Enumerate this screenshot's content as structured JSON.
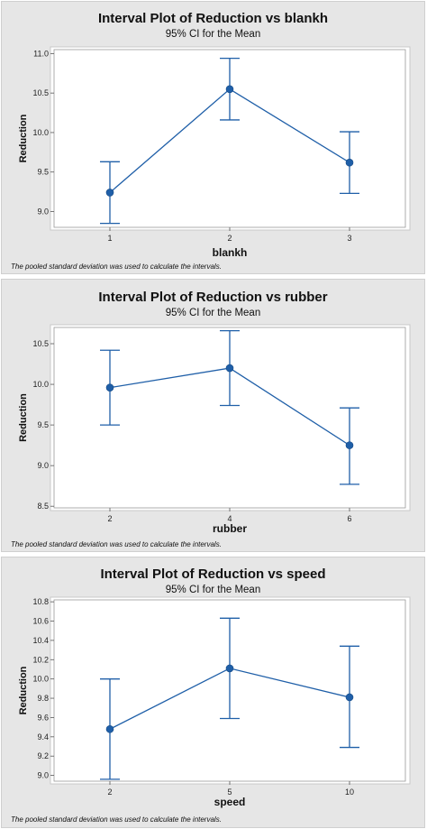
{
  "chart_data": [
    {
      "type": "interval",
      "title": "Interval Plot of Reduction vs blankh",
      "subtitle": "95% CI for the Mean",
      "xlabel": "blankh",
      "ylabel": "Reduction",
      "categories": [
        "1",
        "2",
        "3"
      ],
      "mean": [
        9.24,
        10.55,
        9.62
      ],
      "lower": [
        8.85,
        10.16,
        9.23
      ],
      "upper": [
        9.63,
        10.94,
        10.01
      ],
      "ylim": [
        8.8,
        11.05
      ],
      "yticks": [
        "9.0",
        "9.5",
        "10.0",
        "10.5",
        "11.0"
      ],
      "footnote": "The pooled standard deviation was used to calculate the intervals."
    },
    {
      "type": "interval",
      "title": "Interval Plot of Reduction vs rubber",
      "subtitle": "95% CI for the Mean",
      "xlabel": "rubber",
      "ylabel": "Reduction",
      "categories": [
        "2",
        "4",
        "6"
      ],
      "mean": [
        9.96,
        10.2,
        9.25
      ],
      "lower": [
        9.5,
        9.74,
        8.77
      ],
      "upper": [
        10.42,
        10.66,
        9.71
      ],
      "ylim": [
        8.48,
        10.7
      ],
      "yticks": [
        "8.5",
        "9.0",
        "9.5",
        "10.0",
        "10.5"
      ],
      "footnote": "The pooled standard deviation was used to calculate the intervals."
    },
    {
      "type": "interval",
      "title": "Interval Plot of Reduction vs speed",
      "subtitle": "95% CI for the Mean",
      "xlabel": "speed",
      "ylabel": "Reduction",
      "categories": [
        "2",
        "5",
        "10"
      ],
      "mean": [
        9.48,
        10.11,
        9.81
      ],
      "lower": [
        8.96,
        9.59,
        9.29
      ],
      "upper": [
        10.0,
        10.63,
        10.34
      ],
      "ylim": [
        8.94,
        10.82
      ],
      "yticks": [
        "9.0",
        "9.2",
        "9.4",
        "9.6",
        "9.8",
        "10.0",
        "10.2",
        "10.4",
        "10.6",
        "10.8"
      ],
      "footnote": "The pooled standard deviation was used to calculate the intervals."
    }
  ]
}
